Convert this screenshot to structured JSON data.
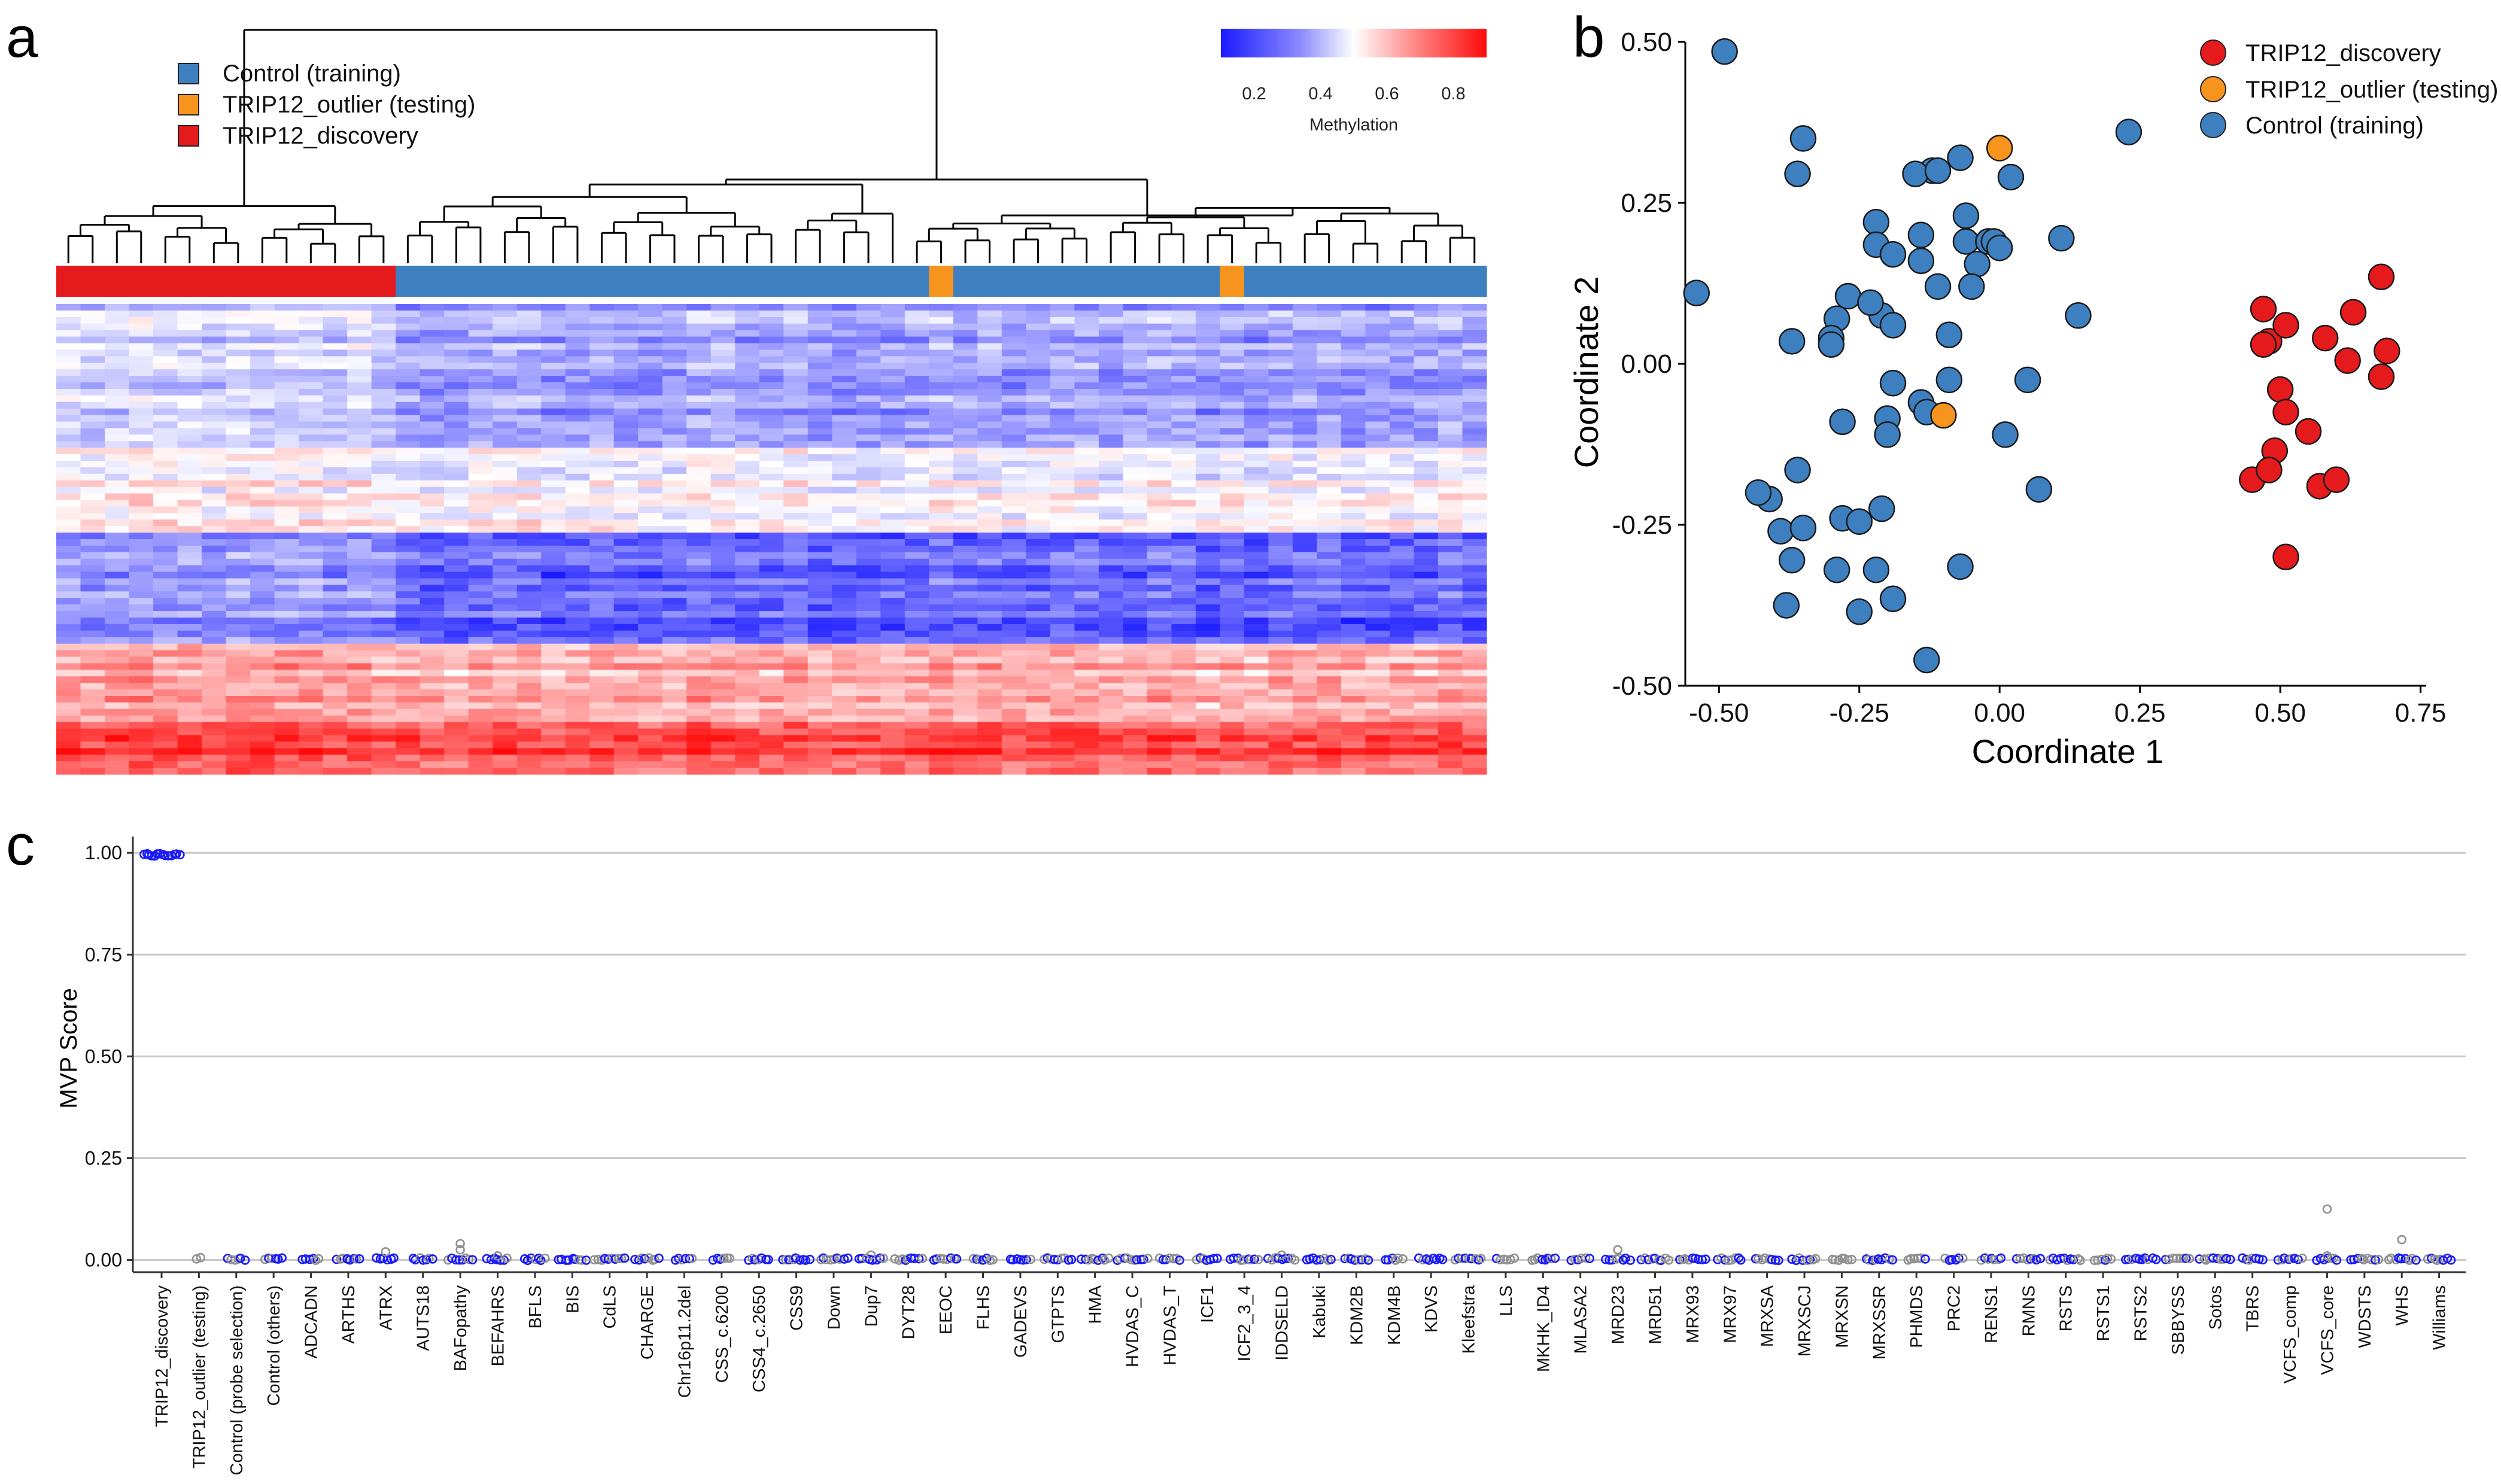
{
  "panels": {
    "a": "a",
    "b": "b",
    "c": "c"
  },
  "colors": {
    "discovery": "#e41a1c",
    "outlier": "#f7941d",
    "control": "#3d7fbf",
    "low": "#2424e0",
    "mid": "#f8f8ff",
    "high": "#ee1010",
    "dot_blue": "#1818ff",
    "dot_grey": "#909090"
  },
  "chart_data": [
    {
      "type": "heatmap",
      "panel": "a",
      "title": "",
      "legend": {
        "position": "top-left",
        "items": [
          {
            "label": "Control (training)",
            "color": "#3d7fbf"
          },
          {
            "label": "TRIP12_outlier (testing)",
            "color": "#f7941d"
          },
          {
            "label": "TRIP12_discovery",
            "color": "#e41a1c"
          }
        ]
      },
      "colorbar": {
        "label": "Methylation",
        "ticks": [
          "0.2",
          "0.4",
          "0.6",
          "0.8"
        ],
        "range": [
          0.1,
          0.9
        ],
        "position": "top-right"
      },
      "columns": {
        "discovery": 14,
        "control": 45,
        "outlier_positions": [
          36,
          48
        ],
        "total": 59
      },
      "row_bands": [
        {
          "rows": 22,
          "mean": 0.3
        },
        {
          "rows": 13,
          "mean": 0.5
        },
        {
          "rows": 17,
          "mean": 0.15
        },
        {
          "rows": 12,
          "mean": 0.66
        },
        {
          "rows": 8,
          "mean": 0.86
        }
      ],
      "group_shift": {
        "discovery": 0.04,
        "control": 0.0
      }
    },
    {
      "type": "scatter",
      "panel": "b",
      "xlabel": "Coordinate 1",
      "ylabel": "Coordinate 2",
      "xlim": [
        -0.56,
        0.76
      ],
      "ylim": [
        -0.5,
        0.5
      ],
      "xticks": [
        "-0.50",
        "-0.25",
        "0.00",
        "0.25",
        "0.50",
        "0.75"
      ],
      "xtick_values": [
        -0.5,
        -0.25,
        0,
        0.25,
        0.5,
        0.75
      ],
      "yticks": [
        "0.50",
        "0.25",
        "0.00",
        "-0.25",
        "-0.50"
      ],
      "ytick_values": [
        0.5,
        0.25,
        0,
        -0.25,
        -0.5
      ],
      "legend": {
        "position": "top-right",
        "items": [
          {
            "label": "TRIP12_discovery",
            "color": "#e41a1c"
          },
          {
            "label": "TRIP12_outlier (testing)",
            "color": "#f7941d"
          },
          {
            "label": "Control (training)",
            "color": "#3d7fbf"
          }
        ]
      },
      "series": [
        {
          "name": "Control (training)",
          "color": "#3d7fbf",
          "points": [
            [
              -0.49,
              0.485
            ],
            [
              -0.54,
              0.11
            ],
            [
              -0.35,
              0.35
            ],
            [
              -0.36,
              0.295
            ],
            [
              -0.12,
              0.3
            ],
            [
              -0.15,
              0.295
            ],
            [
              -0.11,
              0.3
            ],
            [
              -0.07,
              0.32
            ],
            [
              0.02,
              0.29
            ],
            [
              0.23,
              0.36
            ],
            [
              -0.22,
              0.22
            ],
            [
              -0.22,
              0.185
            ],
            [
              -0.19,
              0.17
            ],
            [
              -0.14,
              0.2
            ],
            [
              -0.14,
              0.16
            ],
            [
              -0.06,
              0.23
            ],
            [
              -0.06,
              0.19
            ],
            [
              -0.02,
              0.19
            ],
            [
              -0.01,
              0.19
            ],
            [
              0.0,
              0.18
            ],
            [
              0.11,
              0.195
            ],
            [
              -0.27,
              0.105
            ],
            [
              -0.29,
              0.07
            ],
            [
              -0.3,
              0.04
            ],
            [
              -0.3,
              0.03
            ],
            [
              -0.37,
              0.035
            ],
            [
              -0.21,
              0.075
            ],
            [
              -0.19,
              0.06
            ],
            [
              -0.11,
              0.12
            ],
            [
              -0.04,
              0.155
            ],
            [
              -0.05,
              0.12
            ],
            [
              -0.09,
              0.045
            ],
            [
              0.14,
              0.075
            ],
            [
              -0.19,
              -0.03
            ],
            [
              -0.14,
              -0.06
            ],
            [
              -0.13,
              -0.075
            ],
            [
              -0.09,
              -0.025
            ],
            [
              -0.2,
              -0.085
            ],
            [
              -0.2,
              -0.11
            ],
            [
              -0.28,
              -0.09
            ],
            [
              0.01,
              -0.11
            ],
            [
              0.05,
              -0.025
            ],
            [
              -0.36,
              -0.165
            ],
            [
              -0.41,
              -0.21
            ],
            [
              -0.43,
              -0.2
            ],
            [
              -0.39,
              -0.26
            ],
            [
              -0.35,
              -0.255
            ],
            [
              -0.28,
              -0.24
            ],
            [
              -0.25,
              -0.245
            ],
            [
              -0.21,
              -0.225
            ],
            [
              0.07,
              -0.195
            ],
            [
              -0.37,
              -0.305
            ],
            [
              -0.29,
              -0.32
            ],
            [
              -0.22,
              -0.32
            ],
            [
              -0.07,
              -0.315
            ],
            [
              -0.38,
              -0.375
            ],
            [
              -0.25,
              -0.385
            ],
            [
              -0.19,
              -0.365
            ],
            [
              -0.13,
              -0.46
            ],
            [
              -0.23,
              0.095
            ]
          ]
        },
        {
          "name": "TRIP12_outlier (testing)",
          "color": "#f7941d",
          "points": [
            [
              0.0,
              0.335
            ],
            [
              -0.1,
              -0.08
            ]
          ]
        },
        {
          "name": "TRIP12_discovery",
          "color": "#e41a1c",
          "points": [
            [
              0.47,
              0.085
            ],
            [
              0.63,
              0.08
            ],
            [
              0.68,
              0.135
            ],
            [
              0.48,
              0.035
            ],
            [
              0.47,
              0.03
            ],
            [
              0.51,
              0.06
            ],
            [
              0.58,
              0.04
            ],
            [
              0.62,
              0.005
            ],
            [
              0.69,
              0.02
            ],
            [
              0.68,
              -0.02
            ],
            [
              0.5,
              -0.04
            ],
            [
              0.51,
              -0.075
            ],
            [
              0.55,
              -0.105
            ],
            [
              0.49,
              -0.135
            ],
            [
              0.45,
              -0.18
            ],
            [
              0.48,
              -0.165
            ],
            [
              0.57,
              -0.19
            ],
            [
              0.6,
              -0.18
            ],
            [
              0.51,
              -0.3
            ]
          ]
        }
      ]
    },
    {
      "type": "scatter",
      "panel": "c",
      "xlabel": "",
      "ylabel": "MVP Score",
      "ylim": [
        -0.03,
        1.04
      ],
      "yticks": [
        "1.00",
        "0.75",
        "0.50",
        "0.25",
        "0.00"
      ],
      "ytick_values": [
        1.0,
        0.75,
        0.5,
        0.25,
        0.0
      ],
      "grid": true,
      "categories": [
        "TRIP12_discovery",
        "TRIP12_outlier (testing)",
        "Control (probe selection)",
        "Control (others)",
        "ADCADN",
        "ARTHS",
        "ATRX",
        "AUTS18",
        "BAFopathy",
        "BEFAHRS",
        "BFLS",
        "BIS",
        "CdLS",
        "CHARGE",
        "Chr16p11.2del",
        "CSS_c.6200",
        "CSS4_c.2650",
        "CSS9",
        "Down",
        "Dup7",
        "DYT28",
        "EEOC",
        "FLHS",
        "GADEVS",
        "GTPTS",
        "HMA",
        "HVDAS_C",
        "HVDAS_T",
        "ICF1",
        "ICF2_3_4",
        "IDDSELD",
        "Kabuki",
        "KDM2B",
        "KDM4B",
        "KDVS",
        "Kleefstra",
        "LLS",
        "MKHK_ID4",
        "MLASA2",
        "MRD23",
        "MRD51",
        "MRX93",
        "MRX97",
        "MRXSA",
        "MRXSCJ",
        "MRXSN",
        "MRXSSR",
        "PHMDS",
        "PRC2",
        "RENS1",
        "RMNS",
        "RSTS",
        "RSTS1",
        "RSTS2",
        "SBBYSS",
        "Sotos",
        "TBRS",
        "VCFS_comp",
        "VCFS_core",
        "WDSTS",
        "WHS",
        "Williams"
      ],
      "values": [
        0.995,
        0.005,
        0.002,
        0.002,
        0.002,
        0.002,
        0.002,
        0.002,
        0.002,
        0.002,
        0.002,
        0.002,
        0.002,
        0.002,
        0.002,
        0.002,
        0.002,
        0.002,
        0.002,
        0.002,
        0.002,
        0.002,
        0.002,
        0.002,
        0.002,
        0.002,
        0.002,
        0.002,
        0.002,
        0.002,
        0.002,
        0.002,
        0.002,
        0.002,
        0.002,
        0.002,
        0.002,
        0.002,
        0.002,
        0.002,
        0.002,
        0.002,
        0.002,
        0.002,
        0.002,
        0.002,
        0.002,
        0.002,
        0.002,
        0.002,
        0.002,
        0.002,
        0.002,
        0.002,
        0.002,
        0.002,
        0.002,
        0.002,
        0.002,
        0.002,
        0.002,
        0.002
      ],
      "outliers": [
        {
          "category": "ATRX",
          "value": 0.02
        },
        {
          "category": "BAFopathy",
          "value": 0.04
        },
        {
          "category": "BAFopathy",
          "value": 0.025
        },
        {
          "category": "BEFAHRS",
          "value": 0.01
        },
        {
          "category": "Dup7",
          "value": 0.012
        },
        {
          "category": "IDDSELD",
          "value": 0.012
        },
        {
          "category": "MRD23",
          "value": 0.025
        },
        {
          "category": "VCFS_core",
          "value": 0.125
        },
        {
          "category": "VCFS_core",
          "value": 0.01
        },
        {
          "category": "WHS",
          "value": 0.05
        }
      ]
    }
  ]
}
